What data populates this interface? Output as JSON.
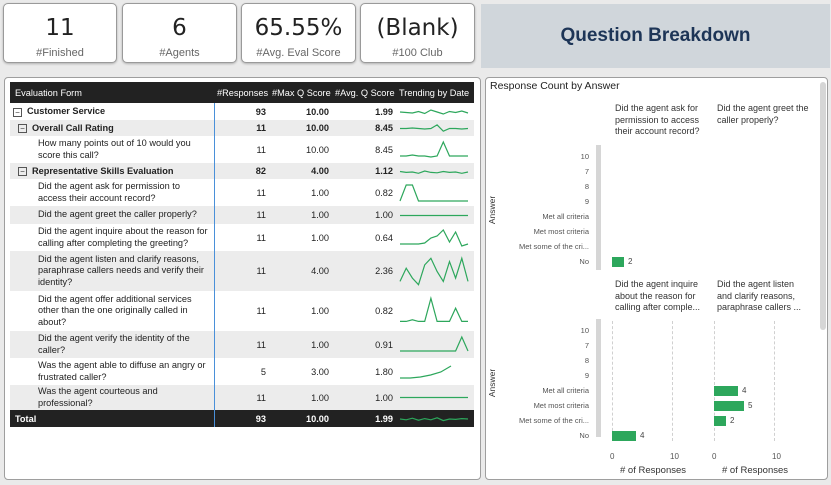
{
  "kpis": [
    {
      "value": "11",
      "label": "#Finished"
    },
    {
      "value": "6",
      "label": "#Agents"
    },
    {
      "value": "65.55%",
      "label": "#Avg. Eval Score"
    },
    {
      "value": "(Blank)",
      "label": "#100 Club"
    }
  ],
  "header": {
    "title": "Question Breakdown"
  },
  "table": {
    "columns": [
      "Evaluation Form",
      "#Responses",
      "#Max Q Score",
      "#Avg. Q Score",
      "Trending by Date"
    ],
    "rows": [
      {
        "label": "Customer Service",
        "responses": "93",
        "max": "10.00",
        "avg": "1.99",
        "toggle": "⊟",
        "trend": [
          0.5,
          0.45,
          0.4,
          0.55,
          0.35,
          0.7,
          0.5,
          0.3,
          0.55,
          0.45,
          0.6,
          0.4
        ]
      },
      {
        "label": "Overall Call Rating",
        "responses": "11",
        "max": "10.00",
        "avg": "8.45",
        "toggle": "⊟",
        "trend": [
          0.5,
          0.5,
          0.55,
          0.5,
          0.45,
          0.5,
          0.9,
          0.2,
          0.5,
          0.5,
          0.45,
          0.5
        ]
      },
      {
        "label": "How many points out of 10 would you score this call?",
        "responses": "11",
        "max": "10.00",
        "avg": "8.45",
        "trend": [
          0.2,
          0.2,
          0.25,
          0.2,
          0.2,
          0.15,
          0.2,
          0.9,
          0.2,
          0.2,
          0.2,
          0.2
        ]
      },
      {
        "label": "Representative Skills Evaluation",
        "responses": "82",
        "max": "4.00",
        "avg": "1.12",
        "toggle": "⊟",
        "trend": [
          0.5,
          0.4,
          0.45,
          0.3,
          0.55,
          0.4,
          0.35,
          0.5,
          0.4,
          0.45,
          0.3,
          0.45
        ]
      },
      {
        "label": "Did the agent ask for permission to access their account record?",
        "responses": "11",
        "max": "1.00",
        "avg": "0.82",
        "trend": [
          0.1,
          0.9,
          0.9,
          0.1,
          0.1,
          0.1,
          0.1,
          0.1,
          0.1,
          0.1,
          0.1,
          0.1
        ]
      },
      {
        "label": "Did the agent greet the caller properly?",
        "responses": "11",
        "max": "1.00",
        "avg": "1.00",
        "trend": [
          0.5,
          0.5,
          0.5,
          0.5,
          0.5,
          0.5,
          0.5,
          0.5,
          0.5,
          0.5,
          0.5,
          0.5
        ]
      },
      {
        "label": "Did the agent inquire about the reason for calling after completing the greeting?",
        "responses": "11",
        "max": "1.00",
        "avg": "0.64",
        "trend": [
          0.2,
          0.2,
          0.2,
          0.2,
          0.25,
          0.5,
          0.6,
          0.9,
          0.3,
          0.8,
          0.1,
          0.2
        ]
      },
      {
        "label": "Did the agent listen and clarify reasons, paraphrase callers needs and verify their identity?",
        "responses": "11",
        "max": "4.00",
        "avg": "2.36",
        "trend": [
          0.2,
          0.6,
          0.3,
          0.1,
          0.7,
          0.9,
          0.5,
          0.2,
          0.8,
          0.3,
          0.9,
          0.2
        ]
      },
      {
        "label": "Did the agent offer additional services other than the one originally called in about?",
        "responses": "11",
        "max": "1.00",
        "avg": "0.82",
        "trend": [
          0.2,
          0.2,
          0.25,
          0.2,
          0.2,
          0.9,
          0.2,
          0.2,
          0.2,
          0.6,
          0.2,
          0.2
        ]
      },
      {
        "label": "Did the agent verify the identity of the caller?",
        "responses": "11",
        "max": "1.00",
        "avg": "0.91",
        "trend": [
          0.2,
          0.2,
          0.2,
          0.2,
          0.2,
          0.2,
          0.2,
          0.2,
          0.2,
          0.2,
          0.9,
          0.2
        ]
      },
      {
        "label": "Was the agent able to diffuse an angry or frustrated caller?",
        "responses": "5",
        "max": "3.00",
        "avg": "1.80",
        "trend": [
          0.2,
          0.2,
          0.25,
          0.35,
          0.5,
          0.8
        ]
      },
      {
        "label": "Was the agent courteous and professional?",
        "responses": "11",
        "max": "1.00",
        "avg": "1.00",
        "trend": [
          0.5,
          0.5,
          0.5,
          0.5,
          0.5,
          0.5,
          0.5,
          0.5,
          0.5,
          0.5,
          0.5,
          0.5
        ]
      }
    ],
    "total": {
      "label": "Total",
      "responses": "93",
      "max": "10.00",
      "avg": "1.99",
      "trend": [
        0.5,
        0.4,
        0.6,
        0.35,
        0.55,
        0.4,
        0.65,
        0.3,
        0.5,
        0.45,
        0.55,
        0.5
      ]
    }
  },
  "chart": {
    "title": "Response Count by Answer",
    "y_axis_title": "Answer",
    "x_axis_title": "# of Responses",
    "answers": [
      "10",
      "7",
      "8",
      "9",
      "Met all criteria",
      "Met most criteria",
      "Met some of the cri...",
      "No"
    ],
    "x_ticks": [
      "0",
      "10"
    ],
    "panels": [
      {
        "title": "Did the agent ask for permission to access their account record?",
        "values": [
          0,
          0,
          0,
          0,
          0,
          0,
          0,
          2
        ],
        "labels": [
          "",
          "",
          "",
          "",
          "",
          "",
          "",
          "2"
        ]
      },
      {
        "title": "Did the agent greet the caller properly?",
        "values": [
          0,
          0,
          0,
          0,
          0,
          0,
          0,
          0
        ],
        "labels": [
          "",
          "",
          "",
          "",
          "",
          "",
          "",
          ""
        ]
      },
      {
        "title": "Did the agent inquire about the reason for calling after comple...",
        "values": [
          0,
          0,
          0,
          0,
          0,
          0,
          0,
          4
        ],
        "labels": [
          "",
          "",
          "",
          "",
          "",
          "",
          "",
          "4"
        ]
      },
      {
        "title": "Did the agent listen and clarify reasons, paraphrase callers ...",
        "values": [
          0,
          0,
          0,
          0,
          4,
          5,
          2,
          0
        ],
        "labels": [
          "",
          "",
          "",
          "",
          "4",
          "5",
          "2",
          ""
        ]
      }
    ],
    "bar_color": "#2da75c"
  }
}
